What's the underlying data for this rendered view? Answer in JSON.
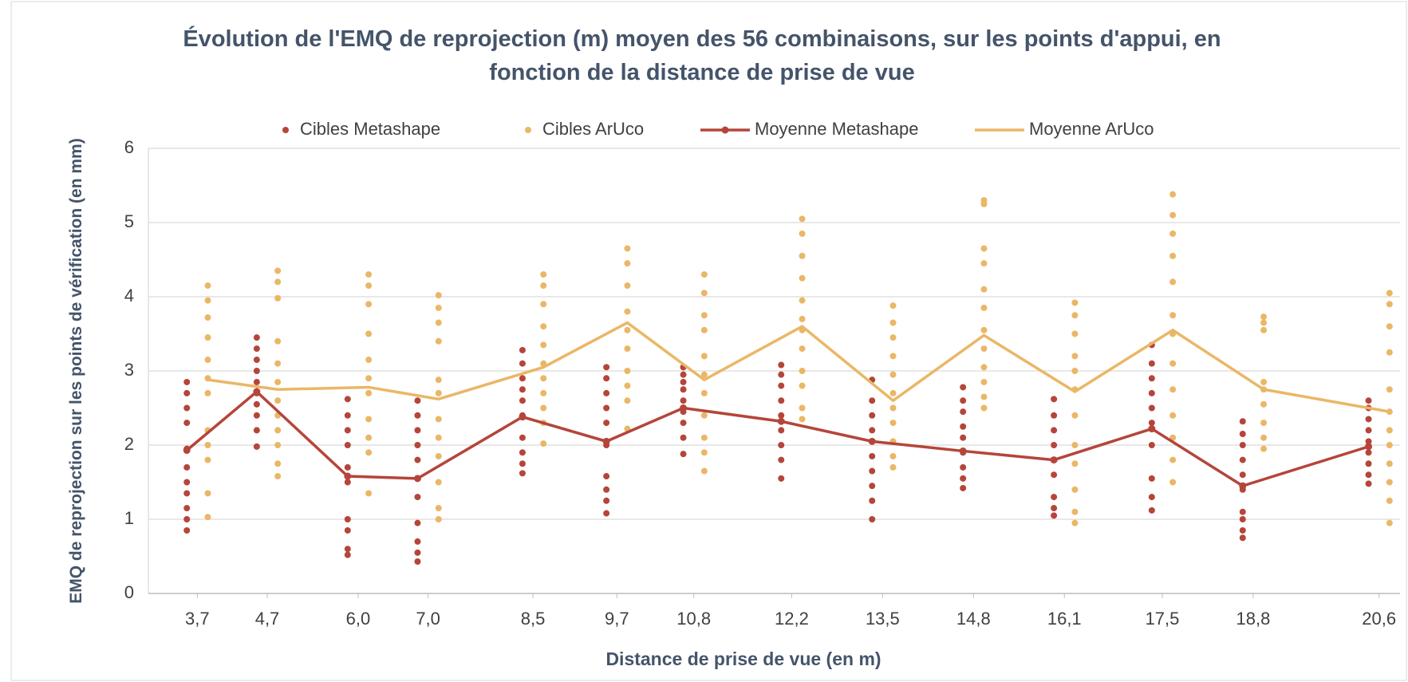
{
  "chart_data": {
    "type": "scatter",
    "title": "Évolution de l'EMQ de reprojection (m) moyen des 56 combinaisons, sur les points d'appui, en fonction de la distance de prise de vue",
    "xlabel": "Distance de prise de vue (en m)",
    "ylabel": "EMQ de reprojection sur les points de vérification (en mm)",
    "xlim": [
      3.0,
      20.9
    ],
    "ylim": [
      0,
      6
    ],
    "yticks": [
      0,
      1,
      2,
      3,
      4,
      5,
      6
    ],
    "xticks": [
      {
        "value": 3.7,
        "label": "3,7"
      },
      {
        "value": 4.7,
        "label": "4,7"
      },
      {
        "value": 6.0,
        "label": "6,0"
      },
      {
        "value": 7.0,
        "label": "7,0"
      },
      {
        "value": 8.5,
        "label": "8,5"
      },
      {
        "value": 9.7,
        "label": "9,7"
      },
      {
        "value": 10.8,
        "label": "10,8"
      },
      {
        "value": 12.2,
        "label": "12,2"
      },
      {
        "value": 13.5,
        "label": "13,5"
      },
      {
        "value": 14.8,
        "label": "14,8"
      },
      {
        "value": 16.1,
        "label": "16,1"
      },
      {
        "value": 17.5,
        "label": "17,5"
      },
      {
        "value": 18.8,
        "label": "18,8"
      },
      {
        "value": 20.6,
        "label": "20,6"
      }
    ],
    "grid": true,
    "legend": "top",
    "series": [
      {
        "name": "Cibles Metashape",
        "type": "scatter",
        "color": "#b5453a",
        "x": [
          3.55,
          3.55,
          3.55,
          3.55,
          3.55,
          3.55,
          3.55,
          3.55,
          3.55,
          3.55,
          3.55,
          4.55,
          4.55,
          4.55,
          4.55,
          4.55,
          4.55,
          4.55,
          4.55,
          4.55,
          4.55,
          5.85,
          5.85,
          5.85,
          5.85,
          5.85,
          5.85,
          5.85,
          5.85,
          5.85,
          5.85,
          6.85,
          6.85,
          6.85,
          6.85,
          6.85,
          6.85,
          6.85,
          6.85,
          6.85,
          6.85,
          8.35,
          8.35,
          8.35,
          8.35,
          8.35,
          8.35,
          8.35,
          8.35,
          8.35,
          8.35,
          9.55,
          9.55,
          9.55,
          9.55,
          9.55,
          9.55,
          9.55,
          9.55,
          9.55,
          9.55,
          10.65,
          10.65,
          10.65,
          10.65,
          10.65,
          10.65,
          10.65,
          10.65,
          10.65,
          12.05,
          12.05,
          12.05,
          12.05,
          12.05,
          12.05,
          12.05,
          12.05,
          12.05,
          13.35,
          13.35,
          13.35,
          13.35,
          13.35,
          13.35,
          13.35,
          13.35,
          13.35,
          13.35,
          14.65,
          14.65,
          14.65,
          14.65,
          14.65,
          14.65,
          14.65,
          14.65,
          14.65,
          15.95,
          15.95,
          15.95,
          15.95,
          15.95,
          15.95,
          15.95,
          15.95,
          15.95,
          17.35,
          17.35,
          17.35,
          17.35,
          17.35,
          17.35,
          17.35,
          17.35,
          17.35,
          17.35,
          18.65,
          18.65,
          18.65,
          18.65,
          18.65,
          18.65,
          18.65,
          18.65,
          18.65,
          18.65,
          20.45,
          20.45,
          20.45,
          20.45,
          20.45,
          20.45,
          20.45,
          20.45,
          20.45
        ],
        "values": [
          0.85,
          1.0,
          1.15,
          1.35,
          1.5,
          1.7,
          1.95,
          2.3,
          2.5,
          2.7,
          2.85,
          1.98,
          2.2,
          2.4,
          2.55,
          2.7,
          2.85,
          3.0,
          3.15,
          3.3,
          3.45,
          0.52,
          0.6,
          0.85,
          1.0,
          1.5,
          1.7,
          2.0,
          2.2,
          2.4,
          2.62,
          0.43,
          0.55,
          0.7,
          0.95,
          1.3,
          1.8,
          2.0,
          2.2,
          2.4,
          2.6,
          1.62,
          1.75,
          1.9,
          2.1,
          2.4,
          2.6,
          2.75,
          2.9,
          3.1,
          3.28,
          1.08,
          1.25,
          1.4,
          1.58,
          2.0,
          2.3,
          2.5,
          2.7,
          2.9,
          3.05,
          1.88,
          2.1,
          2.3,
          2.45,
          2.6,
          2.75,
          2.85,
          2.95,
          3.05,
          1.55,
          1.8,
          2.0,
          2.2,
          2.4,
          2.6,
          2.8,
          2.95,
          3.08,
          1.0,
          1.25,
          1.45,
          1.65,
          1.85,
          2.05,
          2.2,
          2.4,
          2.6,
          2.88,
          1.42,
          1.55,
          1.7,
          1.9,
          2.1,
          2.25,
          2.45,
          2.6,
          2.78,
          1.05,
          1.15,
          1.3,
          1.6,
          1.8,
          2.0,
          2.2,
          2.4,
          2.62,
          1.12,
          1.3,
          1.55,
          2.0,
          2.3,
          2.5,
          2.7,
          2.9,
          3.1,
          3.35,
          0.75,
          0.85,
          1.0,
          1.1,
          1.4,
          1.6,
          1.8,
          2.0,
          2.15,
          2.32,
          1.48,
          1.6,
          1.75,
          1.9,
          2.05,
          2.2,
          2.35,
          2.5,
          2.6
        ]
      },
      {
        "name": "Cibles ArUco",
        "type": "scatter",
        "color": "#eab766",
        "x": [
          3.85,
          3.85,
          3.85,
          3.85,
          3.85,
          3.85,
          3.85,
          3.85,
          3.85,
          3.85,
          3.85,
          3.85,
          4.85,
          4.85,
          4.85,
          4.85,
          4.85,
          4.85,
          4.85,
          4.85,
          4.85,
          4.85,
          4.85,
          4.85,
          6.15,
          6.15,
          6.15,
          6.15,
          6.15,
          6.15,
          6.15,
          6.15,
          6.15,
          6.15,
          6.15,
          7.15,
          7.15,
          7.15,
          7.15,
          7.15,
          7.15,
          7.15,
          7.15,
          7.15,
          7.15,
          7.15,
          7.15,
          8.65,
          8.65,
          8.65,
          8.65,
          8.65,
          8.65,
          8.65,
          8.65,
          8.65,
          8.65,
          8.65,
          9.85,
          9.85,
          9.85,
          9.85,
          9.85,
          9.85,
          9.85,
          9.85,
          9.85,
          9.85,
          10.95,
          10.95,
          10.95,
          10.95,
          10.95,
          10.95,
          10.95,
          10.95,
          10.95,
          10.95,
          10.95,
          12.35,
          12.35,
          12.35,
          12.35,
          12.35,
          12.35,
          12.35,
          12.35,
          12.35,
          12.35,
          12.35,
          12.35,
          13.65,
          13.65,
          13.65,
          13.65,
          13.65,
          13.65,
          13.65,
          13.65,
          13.65,
          13.65,
          13.65,
          14.95,
          14.95,
          14.95,
          14.95,
          14.95,
          14.95,
          14.95,
          14.95,
          14.95,
          14.95,
          14.95,
          14.95,
          16.25,
          16.25,
          16.25,
          16.25,
          16.25,
          16.25,
          16.25,
          16.25,
          16.25,
          16.25,
          16.25,
          16.25,
          17.65,
          17.65,
          17.65,
          17.65,
          17.65,
          17.65,
          17.65,
          17.65,
          17.65,
          17.65,
          17.65,
          17.65,
          17.65,
          18.95,
          18.95,
          18.95,
          18.95,
          18.95,
          18.95,
          18.95,
          18.95,
          18.95,
          20.75,
          20.75,
          20.75,
          20.75,
          20.75,
          20.75,
          20.75,
          20.75,
          20.75,
          20.75,
          20.75,
          20.75
        ],
        "values": [
          1.03,
          1.35,
          1.8,
          2.0,
          2.2,
          2.7,
          2.9,
          3.15,
          3.45,
          3.72,
          3.95,
          4.15,
          1.58,
          1.75,
          2.0,
          2.2,
          2.4,
          2.6,
          2.85,
          3.1,
          3.4,
          3.98,
          4.2,
          4.35,
          1.35,
          1.9,
          2.1,
          2.35,
          2.7,
          2.9,
          3.15,
          3.5,
          3.9,
          4.15,
          4.3,
          1.0,
          1.15,
          1.5,
          1.85,
          2.1,
          2.35,
          2.7,
          2.88,
          3.4,
          3.65,
          3.85,
          4.02,
          2.02,
          2.3,
          2.5,
          2.7,
          2.9,
          3.1,
          3.35,
          3.6,
          3.9,
          4.15,
          4.3,
          2.22,
          2.6,
          2.8,
          3.0,
          3.3,
          3.55,
          3.8,
          4.15,
          4.45,
          4.65,
          1.65,
          1.9,
          2.1,
          2.4,
          2.7,
          2.95,
          3.2,
          3.55,
          3.75,
          4.05,
          4.3,
          2.35,
          2.5,
          2.8,
          3.0,
          3.3,
          3.55,
          3.7,
          3.95,
          4.25,
          4.55,
          4.85,
          5.05,
          1.7,
          1.85,
          2.05,
          2.3,
          2.5,
          2.7,
          2.95,
          3.2,
          3.45,
          3.65,
          3.88,
          2.5,
          2.65,
          2.85,
          3.05,
          3.3,
          3.55,
          3.85,
          4.1,
          4.45,
          4.65,
          5.25,
          5.3,
          0.95,
          1.1,
          1.4,
          1.75,
          2.0,
          2.4,
          2.75,
          3.0,
          3.2,
          3.5,
          3.75,
          3.92,
          1.5,
          1.8,
          2.1,
          2.4,
          2.75,
          3.1,
          3.5,
          3.75,
          4.2,
          4.55,
          4.85,
          5.1,
          5.38,
          1.95,
          2.1,
          2.3,
          2.55,
          2.75,
          2.85,
          3.55,
          3.65,
          3.73,
          0.95,
          1.25,
          1.5,
          1.75,
          2.0,
          2.2,
          2.45,
          2.75,
          3.25,
          3.6,
          3.9,
          4.05
        ]
      },
      {
        "name": "Moyenne Metashape",
        "type": "line",
        "color": "#b5453a",
        "markers": true,
        "x": [
          3.55,
          4.55,
          5.85,
          6.85,
          8.35,
          9.55,
          10.65,
          12.05,
          13.35,
          14.65,
          15.95,
          17.35,
          18.65,
          20.45
        ],
        "values": [
          1.93,
          2.72,
          1.58,
          1.55,
          2.38,
          2.05,
          2.5,
          2.32,
          2.05,
          1.92,
          1.8,
          2.22,
          1.45,
          1.98
        ]
      },
      {
        "name": "Moyenne ArUco",
        "type": "line",
        "color": "#eab766",
        "markers": false,
        "x": [
          3.85,
          4.85,
          6.15,
          7.15,
          8.65,
          9.85,
          10.95,
          12.35,
          13.65,
          14.95,
          16.25,
          17.65,
          18.95,
          20.75
        ],
        "values": [
          2.88,
          2.75,
          2.78,
          2.62,
          3.05,
          3.65,
          2.88,
          3.6,
          2.6,
          3.48,
          2.72,
          3.55,
          2.75,
          2.45
        ]
      }
    ]
  }
}
